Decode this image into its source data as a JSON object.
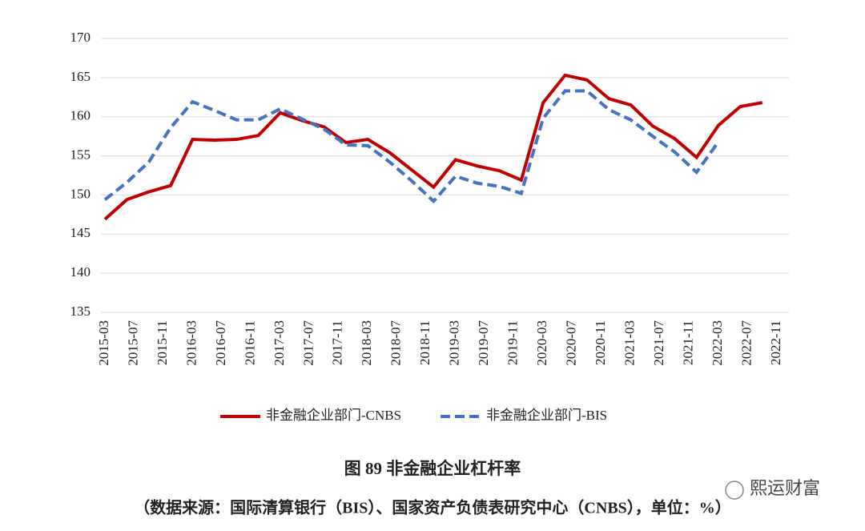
{
  "chart_data": {
    "type": "line",
    "x": [
      "2015-03",
      "2015-06",
      "2015-09",
      "2015-12",
      "2016-03",
      "2016-06",
      "2016-09",
      "2016-12",
      "2017-03",
      "2017-06",
      "2017-09",
      "2017-12",
      "2018-03",
      "2018-06",
      "2018-09",
      "2018-12",
      "2019-03",
      "2019-06",
      "2019-09",
      "2019-12",
      "2020-03",
      "2020-06",
      "2020-09",
      "2020-12",
      "2021-03",
      "2021-06",
      "2021-09",
      "2021-12",
      "2022-03",
      "2022-06",
      "2022-09"
    ],
    "xticks": [
      "2015-03",
      "2015-07",
      "2015-11",
      "2016-03",
      "2016-07",
      "2016-11",
      "2017-03",
      "2017-07",
      "2017-11",
      "2018-03",
      "2018-07",
      "2018-11",
      "2019-03",
      "2019-07",
      "2019-11",
      "2020-03",
      "2020-07",
      "2020-11",
      "2021-03",
      "2021-07",
      "2021-11",
      "2022-03",
      "2022-07",
      "2022-11"
    ],
    "series": [
      {
        "name": "非金融企业部门-CNBS",
        "color": "#c00000",
        "dash": false,
        "values": [
          146.9,
          149.4,
          150.4,
          151.2,
          157.1,
          157.0,
          157.1,
          157.6,
          160.5,
          159.5,
          158.7,
          156.7,
          157.1,
          155.4,
          153.2,
          151.0,
          154.5,
          153.7,
          153.1,
          151.9,
          161.8,
          165.3,
          164.7,
          162.3,
          161.5,
          158.8,
          157.2,
          154.8,
          158.9,
          161.3,
          161.8
        ]
      },
      {
        "name": "非金融企业部门-BIS",
        "color": "#4472c4",
        "dash": true,
        "values": [
          149.4,
          151.6,
          154.2,
          158.6,
          161.9,
          160.8,
          159.6,
          159.6,
          161.0,
          159.7,
          158.4,
          156.4,
          156.3,
          154.2,
          151.8,
          149.2,
          152.4,
          151.5,
          151.1,
          150.2,
          159.8,
          163.3,
          163.3,
          160.9,
          159.6,
          157.5,
          155.5,
          152.9,
          156.8,
          null,
          null
        ]
      }
    ],
    "ylim": [
      135,
      170
    ],
    "yticks": [
      135,
      140,
      145,
      150,
      155,
      160,
      165,
      170
    ],
    "grid": true,
    "caption": "图 89  非金融企业杠杆率",
    "source": "（数据来源：国际清算银行（BIS）、国家资产负债表研究中心（CNBS），单位：%）",
    "watermark": "熙运财富"
  }
}
